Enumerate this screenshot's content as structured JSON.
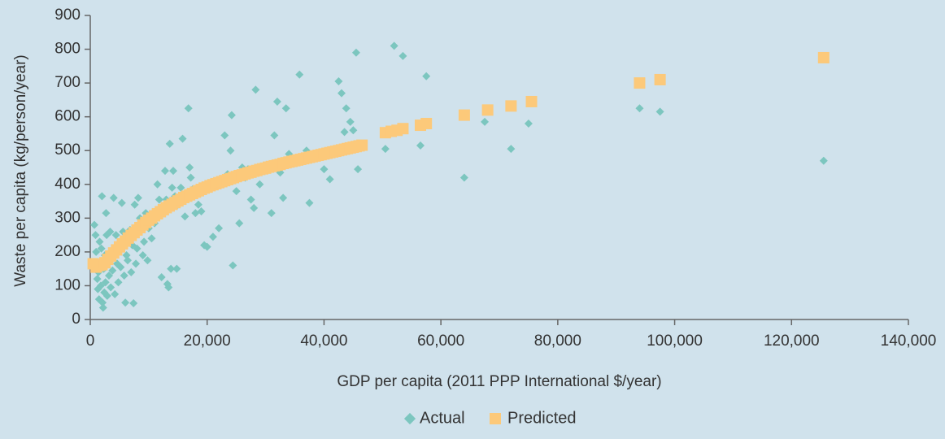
{
  "chart_data": {
    "type": "scatter",
    "title": "",
    "xlabel": "GDP per capita (2011 PPP International $/year)",
    "ylabel": "Waste per capita (kg/person/year)",
    "xlim": [
      0,
      140000
    ],
    "ylim": [
      0,
      900
    ],
    "x_ticks": [
      0,
      20000,
      40000,
      60000,
      80000,
      100000,
      120000,
      140000
    ],
    "x_tick_labels": [
      "0",
      "20,000",
      "40,000",
      "60,000",
      "80,000",
      "100,000",
      "120,000",
      "140,000"
    ],
    "y_ticks": [
      0,
      100,
      200,
      300,
      400,
      500,
      600,
      700,
      800,
      900
    ],
    "y_tick_labels": [
      "0",
      "100",
      "200",
      "300",
      "400",
      "500",
      "600",
      "700",
      "800",
      "900"
    ],
    "grid": false,
    "legend": "bottom-center",
    "colors": {
      "actual": "#7cc6bf",
      "predicted": "#fcc97a",
      "axis": "#666666"
    },
    "series": [
      {
        "name": "Actual",
        "marker": "diamond",
        "points": [
          [
            700,
            280
          ],
          [
            900,
            250
          ],
          [
            1000,
            200
          ],
          [
            1100,
            160
          ],
          [
            1200,
            120
          ],
          [
            1300,
            90
          ],
          [
            1400,
            140
          ],
          [
            1500,
            60
          ],
          [
            1600,
            230
          ],
          [
            1700,
            170
          ],
          [
            1800,
            100
          ],
          [
            1900,
            210
          ],
          [
            2000,
            365
          ],
          [
            2100,
            50
          ],
          [
            2200,
            35
          ],
          [
            2300,
            150
          ],
          [
            2400,
            80
          ],
          [
            2500,
            190
          ],
          [
            2600,
            110
          ],
          [
            2700,
            315
          ],
          [
            2800,
            250
          ],
          [
            2900,
            70
          ],
          [
            3000,
            180
          ],
          [
            3200,
            130
          ],
          [
            3400,
            260
          ],
          [
            3500,
            95
          ],
          [
            3600,
            200
          ],
          [
            3800,
            145
          ],
          [
            4000,
            360
          ],
          [
            4200,
            75
          ],
          [
            4400,
            250
          ],
          [
            4600,
            165
          ],
          [
            4800,
            110
          ],
          [
            5000,
            225
          ],
          [
            5200,
            155
          ],
          [
            5400,
            345
          ],
          [
            5600,
            260
          ],
          [
            5800,
            130
          ],
          [
            6000,
            50
          ],
          [
            6200,
            190
          ],
          [
            6400,
            175
          ],
          [
            6800,
            265
          ],
          [
            7000,
            140
          ],
          [
            7200,
            220
          ],
          [
            7400,
            48
          ],
          [
            7600,
            340
          ],
          [
            7800,
            165
          ],
          [
            8000,
            210
          ],
          [
            8200,
            360
          ],
          [
            8500,
            300
          ],
          [
            9000,
            190
          ],
          [
            9200,
            230
          ],
          [
            9500,
            315
          ],
          [
            9800,
            175
          ],
          [
            10000,
            270
          ],
          [
            10500,
            240
          ],
          [
            11000,
            285
          ],
          [
            11500,
            400
          ],
          [
            11800,
            355
          ],
          [
            12000,
            330
          ],
          [
            12200,
            125
          ],
          [
            12800,
            440
          ],
          [
            13000,
            355
          ],
          [
            13200,
            105
          ],
          [
            13400,
            95
          ],
          [
            13600,
            520
          ],
          [
            13800,
            150
          ],
          [
            14000,
            390
          ],
          [
            14200,
            440
          ],
          [
            14500,
            365
          ],
          [
            14800,
            150
          ],
          [
            15000,
            340
          ],
          [
            15500,
            390
          ],
          [
            15800,
            535
          ],
          [
            16200,
            305
          ],
          [
            16800,
            625
          ],
          [
            17000,
            450
          ],
          [
            17200,
            420
          ],
          [
            17500,
            385
          ],
          [
            18000,
            315
          ],
          [
            18500,
            340
          ],
          [
            19000,
            320
          ],
          [
            19500,
            220
          ],
          [
            20000,
            215
          ],
          [
            21000,
            245
          ],
          [
            22000,
            270
          ],
          [
            23000,
            545
          ],
          [
            23500,
            430
          ],
          [
            24000,
            500
          ],
          [
            24200,
            605
          ],
          [
            24400,
            160
          ],
          [
            25000,
            380
          ],
          [
            25500,
            285
          ],
          [
            26000,
            450
          ],
          [
            26500,
            420
          ],
          [
            27000,
            445
          ],
          [
            27500,
            355
          ],
          [
            28000,
            330
          ],
          [
            28300,
            680
          ],
          [
            29000,
            400
          ],
          [
            30000,
            445
          ],
          [
            31000,
            315
          ],
          [
            31500,
            545
          ],
          [
            32000,
            645
          ],
          [
            32500,
            435
          ],
          [
            33000,
            360
          ],
          [
            33500,
            625
          ],
          [
            34000,
            490
          ],
          [
            35000,
            470
          ],
          [
            35800,
            725
          ],
          [
            37000,
            500
          ],
          [
            37500,
            345
          ],
          [
            38500,
            480
          ],
          [
            40000,
            445
          ],
          [
            41000,
            415
          ],
          [
            42500,
            705
          ],
          [
            43000,
            670
          ],
          [
            43500,
            555
          ],
          [
            43800,
            625
          ],
          [
            44500,
            585
          ],
          [
            45000,
            560
          ],
          [
            45500,
            790
          ],
          [
            45800,
            445
          ],
          [
            50500,
            505
          ],
          [
            52000,
            810
          ],
          [
            53500,
            780
          ],
          [
            56500,
            515
          ],
          [
            57500,
            720
          ],
          [
            64000,
            420
          ],
          [
            67500,
            585
          ],
          [
            72000,
            505
          ],
          [
            75000,
            580
          ],
          [
            94000,
            625
          ],
          [
            97500,
            615
          ],
          [
            125500,
            470
          ]
        ]
      },
      {
        "name": "Predicted",
        "marker": "square",
        "points": [
          [
            500,
            165
          ],
          [
            1000,
            155
          ],
          [
            1500,
            160
          ],
          [
            2000,
            162
          ],
          [
            2500,
            168
          ],
          [
            3000,
            178
          ],
          [
            3500,
            188
          ],
          [
            4000,
            197
          ],
          [
            4500,
            206
          ],
          [
            5000,
            215
          ],
          [
            5500,
            224
          ],
          [
            6000,
            232
          ],
          [
            6500,
            241
          ],
          [
            7000,
            249
          ],
          [
            7500,
            257
          ],
          [
            8000,
            265
          ],
          [
            8500,
            272
          ],
          [
            9000,
            280
          ],
          [
            9500,
            287
          ],
          [
            10000,
            294
          ],
          [
            10500,
            300
          ],
          [
            11000,
            307
          ],
          [
            11500,
            313
          ],
          [
            12000,
            319
          ],
          [
            12500,
            325
          ],
          [
            13000,
            331
          ],
          [
            13500,
            336
          ],
          [
            14000,
            341
          ],
          [
            14500,
            346
          ],
          [
            15000,
            351
          ],
          [
            15500,
            356
          ],
          [
            16000,
            361
          ],
          [
            16500,
            365
          ],
          [
            17000,
            369
          ],
          [
            17500,
            373
          ],
          [
            18000,
            377
          ],
          [
            18500,
            381
          ],
          [
            19000,
            385
          ],
          [
            19500,
            389
          ],
          [
            20000,
            392
          ],
          [
            20500,
            396
          ],
          [
            21000,
            399
          ],
          [
            21500,
            402
          ],
          [
            22000,
            405
          ],
          [
            22500,
            408
          ],
          [
            23000,
            411
          ],
          [
            23500,
            414
          ],
          [
            24000,
            417
          ],
          [
            24500,
            420
          ],
          [
            25000,
            423
          ],
          [
            25500,
            426
          ],
          [
            26000,
            428
          ],
          [
            26500,
            431
          ],
          [
            27000,
            434
          ],
          [
            27500,
            436
          ],
          [
            28000,
            439
          ],
          [
            28500,
            441
          ],
          [
            29000,
            444
          ],
          [
            29500,
            446
          ],
          [
            30000,
            448
          ],
          [
            30500,
            451
          ],
          [
            31000,
            453
          ],
          [
            31500,
            455
          ],
          [
            32000,
            457
          ],
          [
            32500,
            459
          ],
          [
            33000,
            462
          ],
          [
            33500,
            464
          ],
          [
            34000,
            466
          ],
          [
            34500,
            468
          ],
          [
            35000,
            470
          ],
          [
            35500,
            472
          ],
          [
            36000,
            474
          ],
          [
            36500,
            476
          ],
          [
            37000,
            478
          ],
          [
            37500,
            480
          ],
          [
            38000,
            482
          ],
          [
            38500,
            484
          ],
          [
            39000,
            486
          ],
          [
            39500,
            488
          ],
          [
            40000,
            490
          ],
          [
            40500,
            492
          ],
          [
            41000,
            494
          ],
          [
            41500,
            496
          ],
          [
            42000,
            498
          ],
          [
            42500,
            500
          ],
          [
            43000,
            502
          ],
          [
            43500,
            504
          ],
          [
            44000,
            506
          ],
          [
            44500,
            508
          ],
          [
            45000,
            510
          ],
          [
            45500,
            512
          ],
          [
            46000,
            514
          ],
          [
            46500,
            516
          ],
          [
            50500,
            553
          ],
          [
            51500,
            557
          ],
          [
            52500,
            560
          ],
          [
            53500,
            565
          ],
          [
            56500,
            575
          ],
          [
            57500,
            580
          ],
          [
            64000,
            605
          ],
          [
            68000,
            620
          ],
          [
            72000,
            632
          ],
          [
            75500,
            645
          ],
          [
            94000,
            700
          ],
          [
            97500,
            710
          ],
          [
            125500,
            775
          ]
        ]
      }
    ]
  }
}
